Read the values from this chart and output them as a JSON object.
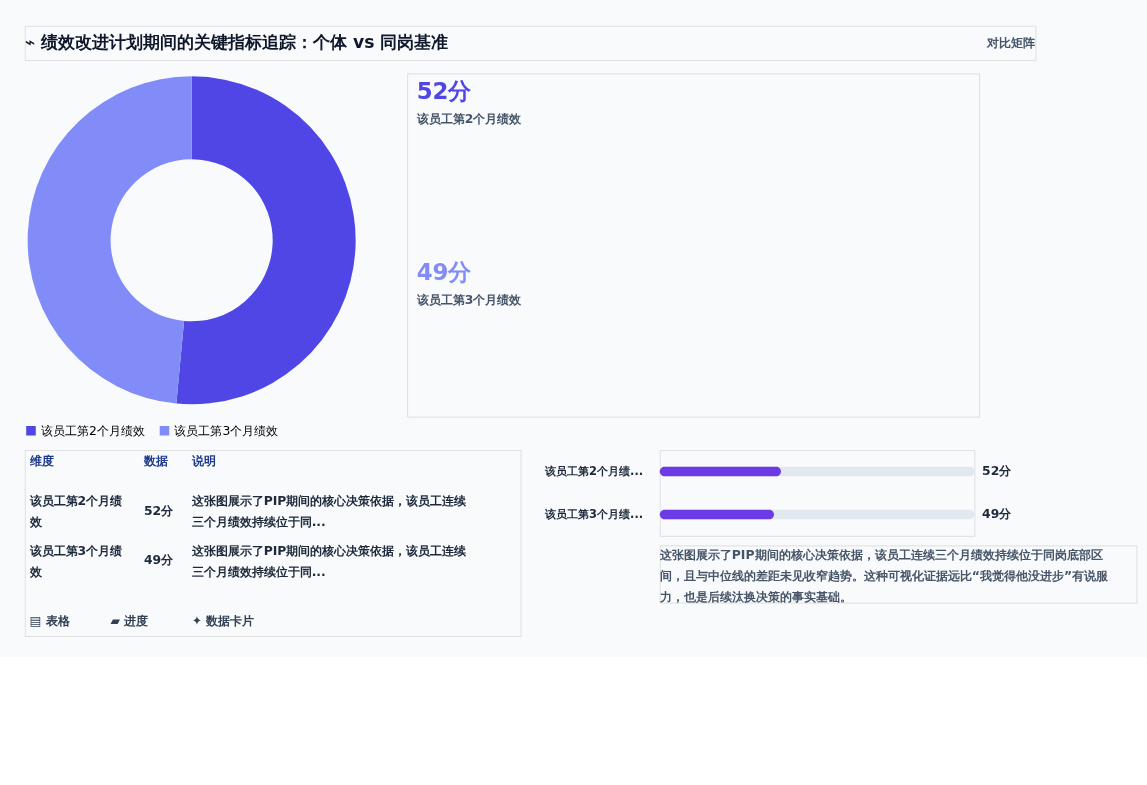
{
  "chart_data": [
    {
      "type": "donut",
      "title": "⌁ 绩效改进计划期间的关键指标追踪：个体 vs 同岗基准",
      "annotations": [
        "对比矩阵"
      ],
      "categories": [
        "该员工第2个月绩效",
        "该员工第3个月绩效"
      ],
      "values": [
        52,
        49
      ],
      "colors": [
        "#4f46e5",
        "#818cf8"
      ],
      "legend": "bottom"
    },
    {
      "type": "other",
      "annotations": [
        "52分",
        "该员工第2个月绩效",
        "49分",
        "该员工第3个月绩效"
      ]
    },
    {
      "type": "other",
      "annotations": [
        "维度",
        "数据",
        "说明",
        "该员工第2个月绩效",
        "52分",
        "这张图展示了PIP期间的核心决策依据，该员工连续三个月绩效持续位于同...",
        "该员工第3个月绩效",
        "49分",
        "这张图展示了PIP期间的核心决策依据，该员工连续三个月绩效持续位于同...",
        "▤ 表格",
        "▰ 进度",
        "✦ 数据卡片"
      ]
    },
    {
      "type": "bar",
      "orientation": "horizontal",
      "categories": [
        "该员工第2个月绩...",
        "该员工第3个月绩..."
      ],
      "values": [
        52,
        49
      ],
      "color": "#6d3be6",
      "xlim": [
        0,
        135
      ],
      "tick_labels": "y",
      "value_labels": [
        "52分",
        "49分"
      ],
      "annotations": [
        "这张图展示了PIP期间的核心决策依据，该员工连续三个月绩效持续位于同岗底部区间，且与中位线的差距未见收窄趋势。这种可视化证据远比“我觉得他没进步”有说服力，也是后续汰换决策的事实基础。"
      ]
    }
  ]
}
